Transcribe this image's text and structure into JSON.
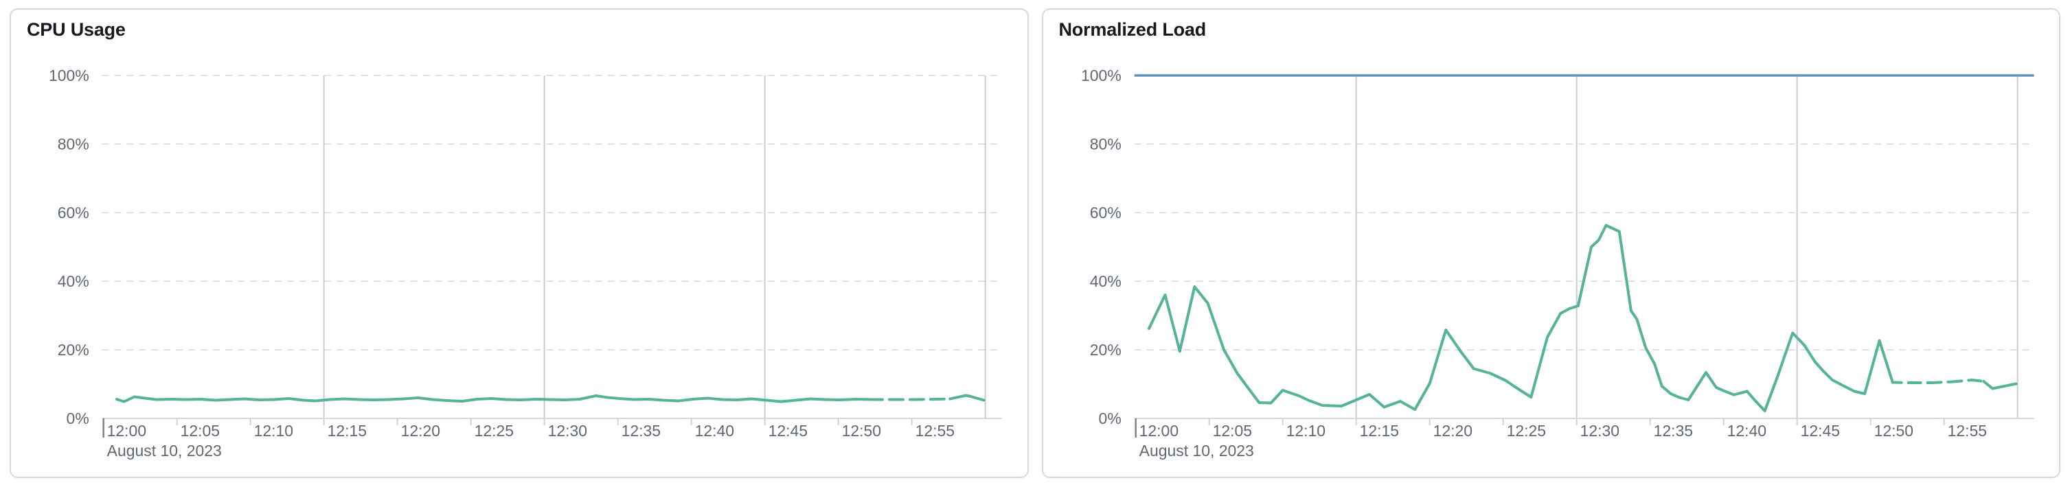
{
  "page": {
    "background_color": "#ffffff",
    "panel_border_color": "#d3dae6"
  },
  "chart_data": [
    {
      "type": "line",
      "title": "CPU Usage",
      "unit": "%",
      "legend": "hidden",
      "grid": "horizontal-dashed, vertical-solid-15min",
      "threshold_line": null,
      "y_axis": {
        "range": [
          0,
          100
        ],
        "tick_values": [
          0,
          20,
          40,
          60,
          80,
          100
        ],
        "tick_labels": [
          "0%",
          "20%",
          "40%",
          "60%",
          "80%",
          "100%"
        ]
      },
      "x_axis": {
        "date_label": "August 10, 2023",
        "domain_minutes": [
          0,
          61
        ],
        "tick_minutes": [
          0,
          5,
          10,
          15,
          20,
          25,
          30,
          35,
          40,
          45,
          50,
          55
        ],
        "tick_labels": [
          "12:00",
          "12:05",
          "12:10",
          "12:15",
          "12:20",
          "12:25",
          "12:30",
          "12:35",
          "12:40",
          "12:45",
          "12:50",
          "12:55"
        ],
        "vertical_gridline_minutes": [
          15,
          30,
          45,
          60
        ]
      },
      "series": [
        {
          "name": "CPU Usage",
          "color": "#54b399",
          "dashed_span_minutes": [
            52.5,
            57.5
          ],
          "points": [
            [
              0.9,
              5.6
            ],
            [
              1.4,
              4.9
            ],
            [
              2.1,
              6.3
            ],
            [
              2.8,
              5.9
            ],
            [
              3.6,
              5.5
            ],
            [
              4.6,
              5.6
            ],
            [
              5.6,
              5.5
            ],
            [
              6.6,
              5.6
            ],
            [
              7.6,
              5.3
            ],
            [
              8.6,
              5.5
            ],
            [
              9.6,
              5.7
            ],
            [
              10.6,
              5.4
            ],
            [
              11.6,
              5.5
            ],
            [
              12.6,
              5.8
            ],
            [
              13.6,
              5.3
            ],
            [
              14.4,
              5.1
            ],
            [
              15.4,
              5.5
            ],
            [
              16.4,
              5.7
            ],
            [
              17.4,
              5.5
            ],
            [
              18.4,
              5.4
            ],
            [
              19.4,
              5.5
            ],
            [
              20.4,
              5.7
            ],
            [
              21.4,
              6.0
            ],
            [
              22.4,
              5.5
            ],
            [
              23.4,
              5.2
            ],
            [
              24.4,
              5.0
            ],
            [
              25.4,
              5.6
            ],
            [
              26.4,
              5.8
            ],
            [
              27.4,
              5.5
            ],
            [
              28.4,
              5.4
            ],
            [
              29.4,
              5.6
            ],
            [
              30.4,
              5.5
            ],
            [
              31.4,
              5.4
            ],
            [
              32.4,
              5.6
            ],
            [
              33.5,
              6.6
            ],
            [
              34.3,
              6.1
            ],
            [
              35.1,
              5.8
            ],
            [
              36.1,
              5.5
            ],
            [
              37.1,
              5.6
            ],
            [
              38.1,
              5.3
            ],
            [
              39.1,
              5.1
            ],
            [
              40.1,
              5.6
            ],
            [
              41.1,
              5.9
            ],
            [
              42.1,
              5.5
            ],
            [
              43.1,
              5.4
            ],
            [
              44.1,
              5.7
            ],
            [
              45.1,
              5.3
            ],
            [
              46.1,
              4.9
            ],
            [
              47.1,
              5.3
            ],
            [
              48.1,
              5.7
            ],
            [
              49.1,
              5.5
            ],
            [
              50.1,
              5.4
            ],
            [
              51.2,
              5.6
            ],
            [
              52.4,
              5.5
            ],
            [
              53.8,
              5.5
            ],
            [
              55.2,
              5.5
            ],
            [
              56.6,
              5.6
            ],
            [
              57.6,
              5.7
            ],
            [
              58.7,
              6.7
            ],
            [
              59.1,
              6.3
            ],
            [
              59.9,
              5.3
            ]
          ]
        }
      ]
    },
    {
      "type": "line",
      "title": "Normalized Load",
      "unit": "%",
      "legend": "hidden",
      "grid": "horizontal-dashed, vertical-solid-15min",
      "threshold_line": {
        "value": 100,
        "color": "#6092c0"
      },
      "y_axis": {
        "range": [
          0,
          100
        ],
        "tick_values": [
          0,
          20,
          40,
          60,
          80,
          100
        ],
        "tick_labels": [
          "0%",
          "20%",
          "40%",
          "60%",
          "80%",
          "100%"
        ]
      },
      "x_axis": {
        "date_label": "August 10, 2023",
        "domain_minutes": [
          0,
          61
        ],
        "tick_minutes": [
          0,
          5,
          10,
          15,
          20,
          25,
          30,
          35,
          40,
          45,
          50,
          55
        ],
        "tick_labels": [
          "12:00",
          "12:05",
          "12:10",
          "12:15",
          "12:20",
          "12:25",
          "12:30",
          "12:35",
          "12:40",
          "12:45",
          "12:50",
          "12:55"
        ],
        "vertical_gridline_minutes": [
          15,
          30,
          45,
          60
        ]
      },
      "series": [
        {
          "name": "Normalized Load",
          "color": "#54b399",
          "dashed_span_minutes": [
            51.8,
            57.4
          ],
          "points": [
            [
              0.9,
              26.2
            ],
            [
              2.0,
              36.0
            ],
            [
              3.0,
              19.6
            ],
            [
              4.0,
              38.4
            ],
            [
              4.9,
              33.6
            ],
            [
              6.0,
              20.0
            ],
            [
              6.9,
              13.2
            ],
            [
              7.8,
              8.0
            ],
            [
              8.4,
              4.6
            ],
            [
              9.2,
              4.5
            ],
            [
              10.0,
              8.2
            ],
            [
              11.1,
              6.6
            ],
            [
              11.8,
              5.2
            ],
            [
              12.7,
              3.8
            ],
            [
              14.0,
              3.6
            ],
            [
              15.9,
              7.0
            ],
            [
              16.9,
              3.3
            ],
            [
              18.0,
              5.0
            ],
            [
              19.0,
              2.6
            ],
            [
              20.0,
              10.2
            ],
            [
              21.1,
              25.8
            ],
            [
              22.1,
              19.6
            ],
            [
              23.0,
              14.5
            ],
            [
              24.1,
              13.2
            ],
            [
              25.2,
              11.0
            ],
            [
              25.8,
              9.2
            ],
            [
              26.9,
              6.2
            ],
            [
              28.0,
              23.6
            ],
            [
              28.9,
              30.6
            ],
            [
              29.5,
              32.0
            ],
            [
              30.1,
              32.8
            ],
            [
              31.0,
              50.0
            ],
            [
              31.5,
              52.0
            ],
            [
              32.0,
              56.3
            ],
            [
              32.9,
              54.5
            ],
            [
              33.7,
              31.4
            ],
            [
              34.1,
              28.9
            ],
            [
              34.7,
              20.6
            ],
            [
              35.3,
              15.9
            ],
            [
              35.8,
              9.4
            ],
            [
              36.4,
              7.2
            ],
            [
              37.0,
              6.1
            ],
            [
              37.6,
              5.4
            ],
            [
              38.8,
              13.4
            ],
            [
              39.5,
              9.0
            ],
            [
              40.1,
              7.9
            ],
            [
              40.7,
              6.9
            ],
            [
              41.6,
              7.9
            ],
            [
              42.1,
              5.4
            ],
            [
              42.8,
              2.2
            ],
            [
              43.7,
              12.6
            ],
            [
              44.2,
              18.8
            ],
            [
              44.7,
              24.9
            ],
            [
              45.5,
              21.3
            ],
            [
              46.2,
              16.6
            ],
            [
              46.8,
              13.7
            ],
            [
              47.4,
              11.2
            ],
            [
              48.2,
              9.4
            ],
            [
              48.9,
              7.9
            ],
            [
              49.6,
              7.2
            ],
            [
              50.6,
              22.7
            ],
            [
              51.5,
              10.5
            ],
            [
              52.8,
              10.4
            ],
            [
              54.2,
              10.4
            ],
            [
              55.6,
              10.7
            ],
            [
              56.9,
              11.2
            ],
            [
              57.7,
              10.8
            ],
            [
              58.3,
              8.7
            ],
            [
              59.9,
              10.1
            ]
          ]
        }
      ]
    }
  ]
}
